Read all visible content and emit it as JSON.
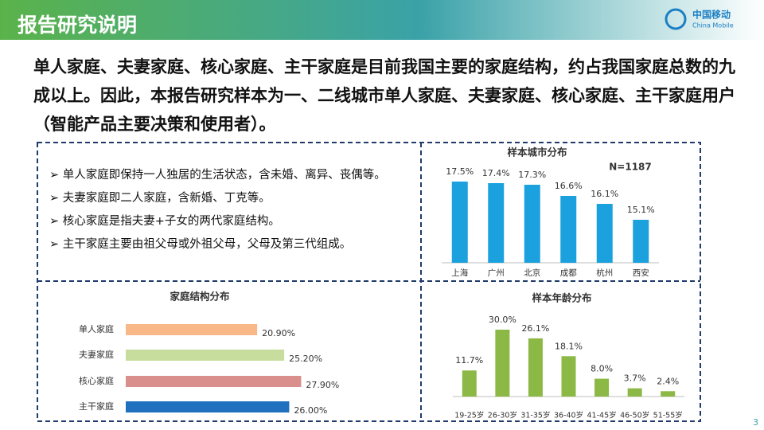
{
  "header": {
    "title": "报告研究说明",
    "logo": "中国移动",
    "logo_en": "China Mobile"
  },
  "intro": "单人家庭、夫妻家庭、核心家庭、主干家庭是目前我国主要的家庭结构，约占我国家庭总数的九成以上。因此，本报告研究样本为一、二线城市单人家庭、夫妻家庭、核心家庭、主干家庭用户（智能产品主要决策和使用者）。",
  "bullets": [
    "单人家庭即保持一人独居的生活状态，含未婚、离异、丧偶等。",
    "夫妻家庭即二人家庭，含新婚、丁克等。",
    "核心家庭是指夫妻+子女的两代家庭结构。",
    "主干家庭主要由祖父母或外祖父母，父母及第三代组成。"
  ],
  "page_number": "3",
  "chart_data": [
    {
      "type": "bar",
      "title": "样本城市分布",
      "annotation": "N=1187",
      "categories": [
        "上海",
        "广州",
        "北京",
        "成都",
        "杭州",
        "西安"
      ],
      "values": [
        17.5,
        17.4,
        17.3,
        16.6,
        16.1,
        15.1
      ],
      "value_labels": [
        "17.5%",
        "17.4%",
        "17.3%",
        "16.6%",
        "16.1%",
        "15.1%"
      ],
      "color": "#1ba1de",
      "ylim": [
        12.4,
        18.5
      ]
    },
    {
      "type": "bar",
      "horizontal": true,
      "title": "家庭结构分布",
      "categories": [
        "单人家庭",
        "夫妻家庭",
        "核心家庭",
        "主干家庭"
      ],
      "values": [
        20.9,
        25.2,
        27.9,
        26.0
      ],
      "value_labels": [
        "20.90%",
        "25.20%",
        "27.90%",
        "26.00%"
      ],
      "colors": [
        "#f8b887",
        "#c6dd9d",
        "#d98f8b",
        "#1f70bf"
      ],
      "xlim": [
        0,
        30
      ]
    },
    {
      "type": "bar",
      "title": "样本年龄分布",
      "categories": [
        "19-25岁",
        "26-30岁",
        "31-35岁",
        "36-40岁",
        "41-45岁",
        "46-50岁",
        "51-55岁"
      ],
      "values": [
        11.7,
        30.0,
        26.1,
        18.1,
        8.0,
        3.7,
        2.4
      ],
      "value_labels": [
        "11.7%",
        "30.0%",
        "26.1%",
        "18.1%",
        "8.0%",
        "3.7%",
        "2.4%"
      ],
      "color": "#8cb845",
      "ylim": [
        0,
        30
      ]
    }
  ]
}
